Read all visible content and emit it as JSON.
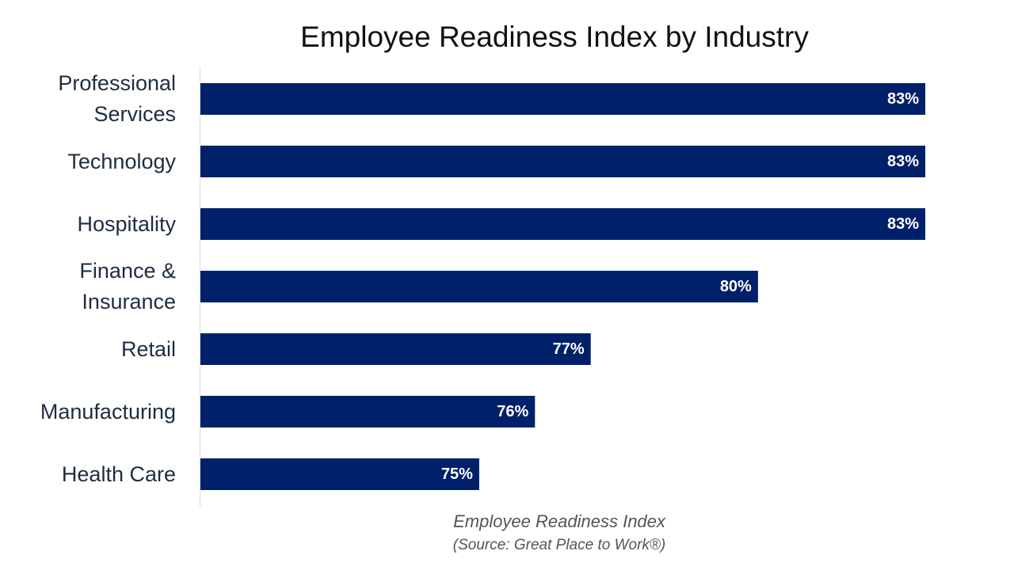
{
  "chart_data": {
    "type": "bar",
    "orientation": "horizontal",
    "title": "Employee Readiness Index by Industry",
    "xlabel": "Employee Readiness Index",
    "source": "(Source: Great Place to Work®)",
    "categories": [
      "Professional Services",
      "Technology",
      "Hospitality",
      "Finance & Insurance",
      "Retail",
      "Manufacturing",
      "Health Care"
    ],
    "category_lines": [
      [
        "Professional",
        "Services"
      ],
      [
        "Technology"
      ],
      [
        "Hospitality"
      ],
      [
        "Finance &",
        "Insurance"
      ],
      [
        "Retail"
      ],
      [
        "Manufacturing"
      ],
      [
        "Health Care"
      ]
    ],
    "values": [
      83,
      83,
      83,
      80,
      77,
      76,
      75
    ],
    "value_labels": [
      "83%",
      "83%",
      "83%",
      "80%",
      "77%",
      "76%",
      "75%"
    ],
    "xlim": [
      70,
      83
    ],
    "grid": false,
    "legend": "none",
    "bar_color": "#002169"
  }
}
